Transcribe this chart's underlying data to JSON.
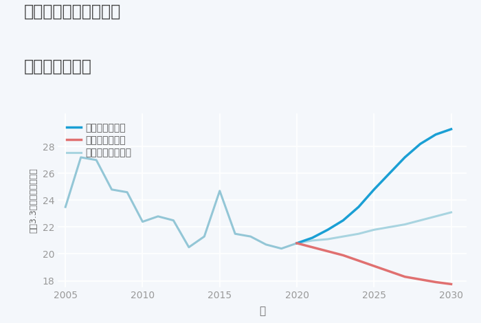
{
  "title_line1": "岐阜県岐阜市西河渡の",
  "title_line2": "土地の価格推移",
  "xlabel": "年",
  "ylabel": "坪（3.3㎡）単価（万円）",
  "background_color": "#f4f7fb",
  "plot_background": "#f4f7fb",
  "historical_years": [
    2005,
    2006,
    2007,
    2008,
    2009,
    2010,
    2011,
    2012,
    2013,
    2014,
    2015,
    2016,
    2017,
    2018,
    2019,
    2020
  ],
  "historical_values": [
    23.5,
    27.2,
    27.0,
    24.8,
    24.6,
    22.4,
    22.8,
    22.5,
    20.5,
    21.3,
    24.7,
    21.5,
    21.3,
    20.7,
    20.4,
    20.8
  ],
  "good_years": [
    2020,
    2021,
    2022,
    2023,
    2024,
    2025,
    2026,
    2027,
    2028,
    2029,
    2030
  ],
  "good_values": [
    20.8,
    21.2,
    21.8,
    22.5,
    23.5,
    24.8,
    26.0,
    27.2,
    28.2,
    28.9,
    29.3
  ],
  "bad_years": [
    2020,
    2021,
    2022,
    2023,
    2024,
    2025,
    2026,
    2027,
    2028,
    2029,
    2030
  ],
  "bad_values": [
    20.8,
    20.5,
    20.2,
    19.9,
    19.5,
    19.1,
    18.7,
    18.3,
    18.1,
    17.9,
    17.75
  ],
  "normal_years": [
    2020,
    2021,
    2022,
    2023,
    2024,
    2025,
    2026,
    2027,
    2028,
    2029,
    2030
  ],
  "normal_values": [
    20.8,
    21.0,
    21.1,
    21.3,
    21.5,
    21.8,
    22.0,
    22.2,
    22.5,
    22.8,
    23.1
  ],
  "color_historical": "#93c6d6",
  "color_good": "#1a9fd4",
  "color_bad": "#e07070",
  "color_normal": "#a8d4e0",
  "legend_good": "グッドシナリオ",
  "legend_bad": "バッドシナリオ",
  "legend_normal": "ノーマルシナリオ",
  "ylim": [
    17.5,
    30.5
  ],
  "xlim": [
    2004.5,
    2031
  ],
  "yticks": [
    18,
    20,
    22,
    24,
    26,
    28
  ],
  "xticks": [
    2005,
    2010,
    2015,
    2020,
    2025,
    2030
  ]
}
